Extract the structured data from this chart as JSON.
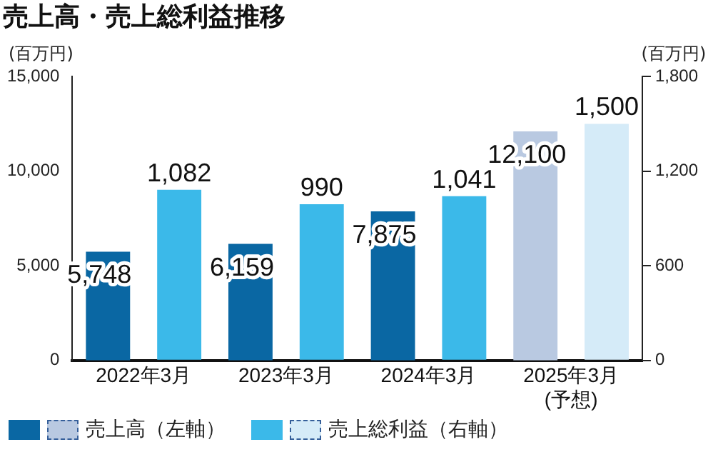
{
  "chart_data": {
    "type": "bar",
    "title": "売上高・売上総利益推移",
    "ylabel": "(百万円)",
    "y2label": "(百万円)",
    "categories": [
      "2022年3月",
      "2023年3月",
      "2024年3月",
      "2025年3月\n(予想)"
    ],
    "series": [
      {
        "name": "売上高（左軸）",
        "color": "#0a67a3",
        "colors": [
          "#0a67a3",
          "#0a67a3",
          "#0a67a3",
          "#b9c9e1"
        ],
        "values": [
          5748,
          6159,
          7875,
          12100
        ],
        "value_labels": [
          "5,748",
          "6,159",
          "7,875",
          "12,100"
        ]
      },
      {
        "name": "売上総利益（右軸）",
        "color": "#3bb9e9",
        "colors": [
          "#3bb9e9",
          "#3bb9e9",
          "#3bb9e9",
          "#d5ebf8"
        ],
        "values": [
          1082,
          990,
          1041,
          1500
        ],
        "value_labels": [
          "1,082",
          "990",
          "1,041",
          "1,500"
        ],
        "axis": "y2"
      }
    ],
    "ylim": [
      0,
      15000
    ],
    "yticks": [
      0,
      {
        "value": 5000,
        "label": "5,000"
      },
      {
        "value": 10000,
        "label": "10,000"
      },
      {
        "value": 15000,
        "label": "15,000"
      }
    ],
    "y2lim": [
      0,
      1800
    ],
    "y2ticks": [
      0,
      600,
      {
        "value": 1200,
        "label": "1,200"
      },
      {
        "value": 1800,
        "label": "1,800"
      }
    ],
    "legend": "bottom",
    "grid": false
  }
}
